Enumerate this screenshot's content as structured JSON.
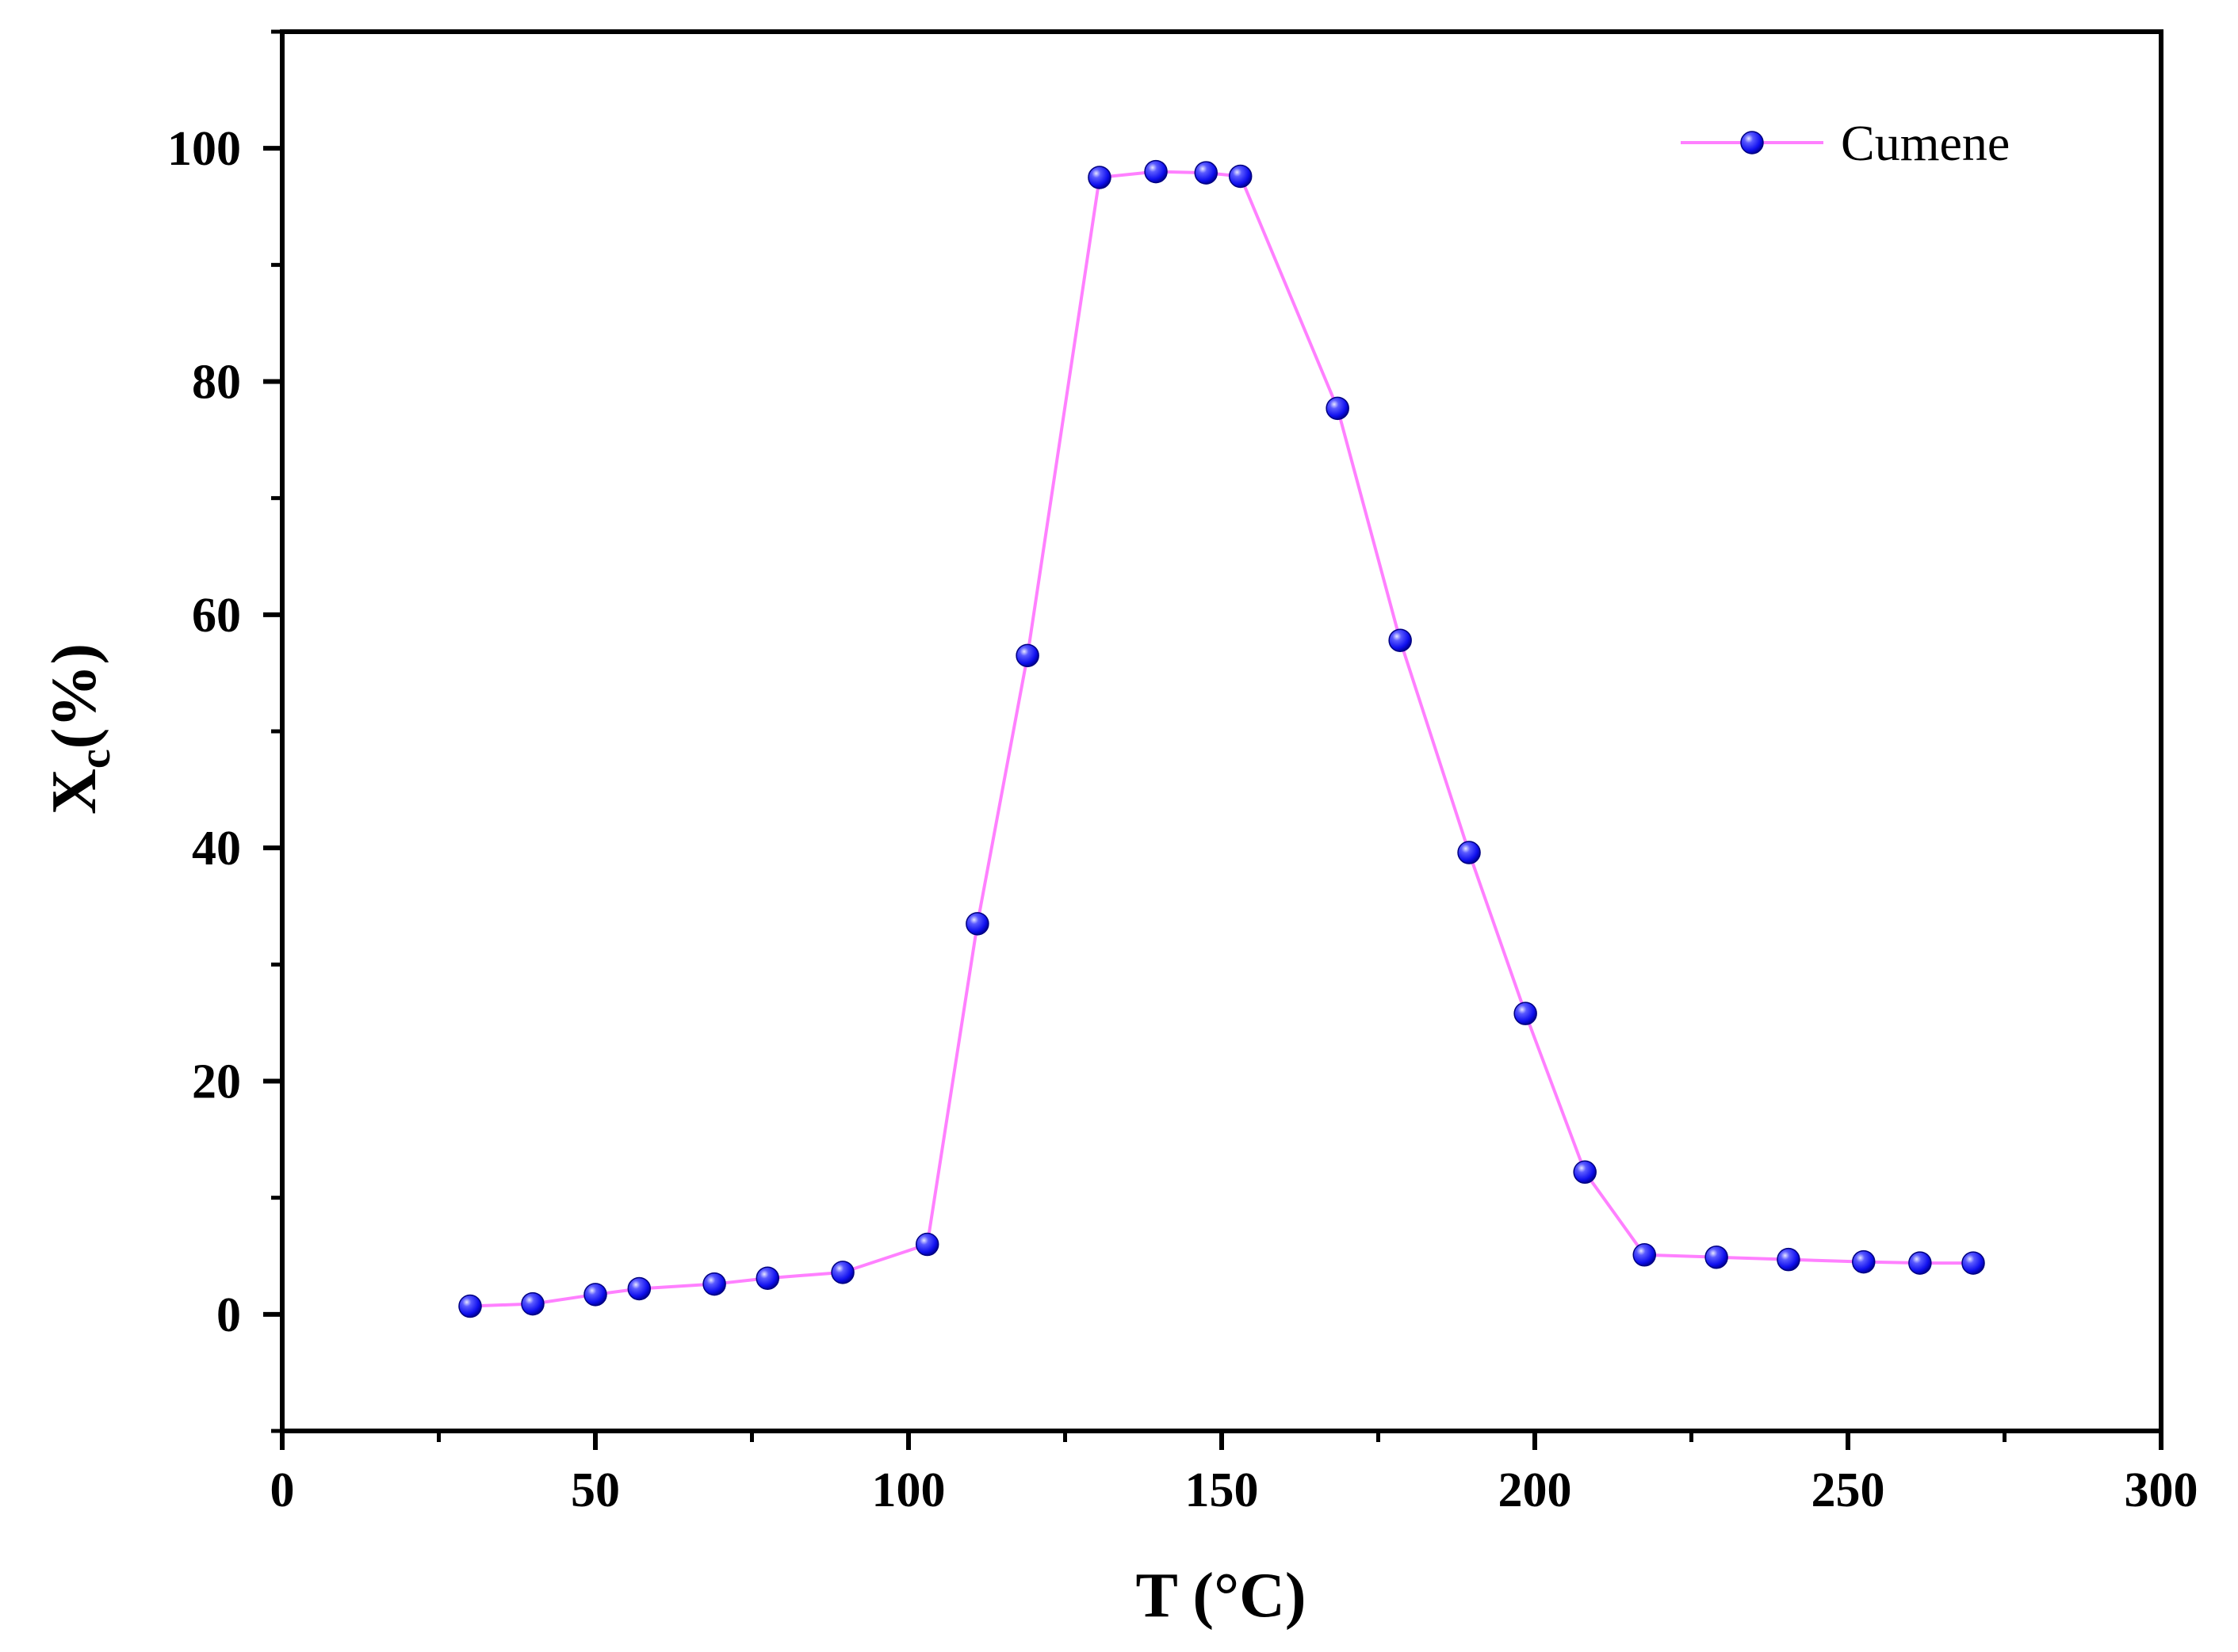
{
  "chart_data": {
    "type": "line",
    "title": "",
    "xlabel": "T (°C)",
    "ylabel_main": "X",
    "ylabel_sub": "c",
    "ylabel_suffix": "(%)",
    "xlim": [
      0,
      300
    ],
    "ylim": [
      -10,
      110
    ],
    "x_ticks": [
      0,
      50,
      100,
      150,
      200,
      250,
      300
    ],
    "y_ticks": [
      0,
      20,
      40,
      60,
      80,
      100
    ],
    "grid": false,
    "legend_position": "top-right",
    "series": [
      {
        "name": "Cumene",
        "line_color": "#ff80ff",
        "marker_color": "#1a1aff",
        "x": [
          30,
          40,
          50,
          57,
          69,
          77.5,
          89.5,
          103,
          111,
          119,
          130.5,
          139.5,
          147.5,
          153,
          168.5,
          178.5,
          189.5,
          198.5,
          208,
          217.5,
          229,
          240.5,
          252.5,
          261.5,
          270
        ],
        "y": [
          0.7,
          0.9,
          1.7,
          2.2,
          2.6,
          3.1,
          3.6,
          6.0,
          33.5,
          56.5,
          97.5,
          98.0,
          97.9,
          97.6,
          77.7,
          57.8,
          39.6,
          25.8,
          12.2,
          5.1,
          4.9,
          4.7,
          4.5,
          4.4,
          4.4
        ]
      }
    ]
  }
}
